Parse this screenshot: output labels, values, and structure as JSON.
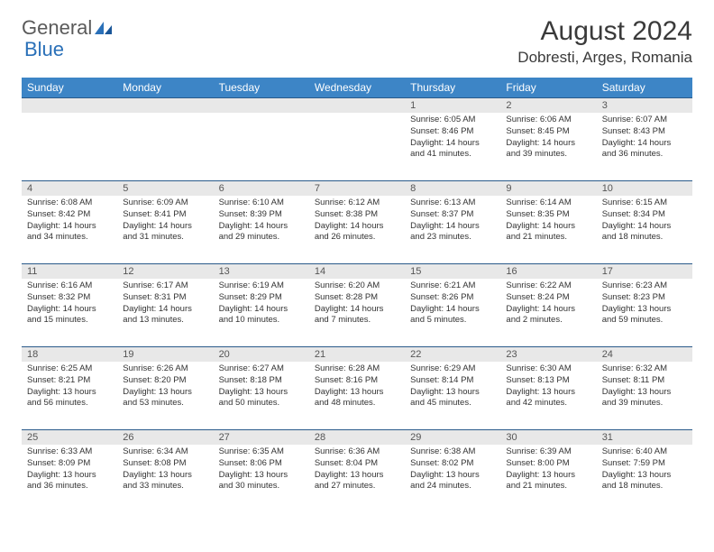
{
  "logo": {
    "word1": "General",
    "word2": "Blue"
  },
  "title": "August 2024",
  "location": "Dobresti, Arges, Romania",
  "colors": {
    "header_bg": "#3d85c6",
    "header_text": "#ffffff",
    "row_divider": "#2a5a8a",
    "daynum_bg": "#e8e8e8",
    "logo_gray": "#5a5a5a",
    "logo_blue": "#2a70b8"
  },
  "day_names": [
    "Sunday",
    "Monday",
    "Tuesday",
    "Wednesday",
    "Thursday",
    "Friday",
    "Saturday"
  ],
  "weeks": [
    [
      null,
      null,
      null,
      null,
      {
        "n": "1",
        "sr": "6:05 AM",
        "ss": "8:46 PM",
        "dl": "14 hours and 41 minutes."
      },
      {
        "n": "2",
        "sr": "6:06 AM",
        "ss": "8:45 PM",
        "dl": "14 hours and 39 minutes."
      },
      {
        "n": "3",
        "sr": "6:07 AM",
        "ss": "8:43 PM",
        "dl": "14 hours and 36 minutes."
      }
    ],
    [
      {
        "n": "4",
        "sr": "6:08 AM",
        "ss": "8:42 PM",
        "dl": "14 hours and 34 minutes."
      },
      {
        "n": "5",
        "sr": "6:09 AM",
        "ss": "8:41 PM",
        "dl": "14 hours and 31 minutes."
      },
      {
        "n": "6",
        "sr": "6:10 AM",
        "ss": "8:39 PM",
        "dl": "14 hours and 29 minutes."
      },
      {
        "n": "7",
        "sr": "6:12 AM",
        "ss": "8:38 PM",
        "dl": "14 hours and 26 minutes."
      },
      {
        "n": "8",
        "sr": "6:13 AM",
        "ss": "8:37 PM",
        "dl": "14 hours and 23 minutes."
      },
      {
        "n": "9",
        "sr": "6:14 AM",
        "ss": "8:35 PM",
        "dl": "14 hours and 21 minutes."
      },
      {
        "n": "10",
        "sr": "6:15 AM",
        "ss": "8:34 PM",
        "dl": "14 hours and 18 minutes."
      }
    ],
    [
      {
        "n": "11",
        "sr": "6:16 AM",
        "ss": "8:32 PM",
        "dl": "14 hours and 15 minutes."
      },
      {
        "n": "12",
        "sr": "6:17 AM",
        "ss": "8:31 PM",
        "dl": "14 hours and 13 minutes."
      },
      {
        "n": "13",
        "sr": "6:19 AM",
        "ss": "8:29 PM",
        "dl": "14 hours and 10 minutes."
      },
      {
        "n": "14",
        "sr": "6:20 AM",
        "ss": "8:28 PM",
        "dl": "14 hours and 7 minutes."
      },
      {
        "n": "15",
        "sr": "6:21 AM",
        "ss": "8:26 PM",
        "dl": "14 hours and 5 minutes."
      },
      {
        "n": "16",
        "sr": "6:22 AM",
        "ss": "8:24 PM",
        "dl": "14 hours and 2 minutes."
      },
      {
        "n": "17",
        "sr": "6:23 AM",
        "ss": "8:23 PM",
        "dl": "13 hours and 59 minutes."
      }
    ],
    [
      {
        "n": "18",
        "sr": "6:25 AM",
        "ss": "8:21 PM",
        "dl": "13 hours and 56 minutes."
      },
      {
        "n": "19",
        "sr": "6:26 AM",
        "ss": "8:20 PM",
        "dl": "13 hours and 53 minutes."
      },
      {
        "n": "20",
        "sr": "6:27 AM",
        "ss": "8:18 PM",
        "dl": "13 hours and 50 minutes."
      },
      {
        "n": "21",
        "sr": "6:28 AM",
        "ss": "8:16 PM",
        "dl": "13 hours and 48 minutes."
      },
      {
        "n": "22",
        "sr": "6:29 AM",
        "ss": "8:14 PM",
        "dl": "13 hours and 45 minutes."
      },
      {
        "n": "23",
        "sr": "6:30 AM",
        "ss": "8:13 PM",
        "dl": "13 hours and 42 minutes."
      },
      {
        "n": "24",
        "sr": "6:32 AM",
        "ss": "8:11 PM",
        "dl": "13 hours and 39 minutes."
      }
    ],
    [
      {
        "n": "25",
        "sr": "6:33 AM",
        "ss": "8:09 PM",
        "dl": "13 hours and 36 minutes."
      },
      {
        "n": "26",
        "sr": "6:34 AM",
        "ss": "8:08 PM",
        "dl": "13 hours and 33 minutes."
      },
      {
        "n": "27",
        "sr": "6:35 AM",
        "ss": "8:06 PM",
        "dl": "13 hours and 30 minutes."
      },
      {
        "n": "28",
        "sr": "6:36 AM",
        "ss": "8:04 PM",
        "dl": "13 hours and 27 minutes."
      },
      {
        "n": "29",
        "sr": "6:38 AM",
        "ss": "8:02 PM",
        "dl": "13 hours and 24 minutes."
      },
      {
        "n": "30",
        "sr": "6:39 AM",
        "ss": "8:00 PM",
        "dl": "13 hours and 21 minutes."
      },
      {
        "n": "31",
        "sr": "6:40 AM",
        "ss": "7:59 PM",
        "dl": "13 hours and 18 minutes."
      }
    ]
  ],
  "labels": {
    "sunrise": "Sunrise:",
    "sunset": "Sunset:",
    "daylight": "Daylight:"
  }
}
